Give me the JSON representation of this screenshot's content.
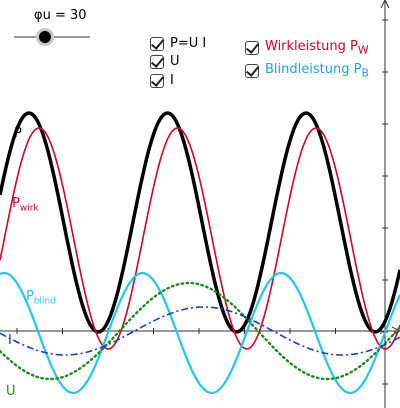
{
  "slider": {
    "label": "φu = 30",
    "value": 30
  },
  "checkboxes": [
    {
      "label": "P=U I",
      "checked": true,
      "color": "#000000"
    },
    {
      "label": "U",
      "checked": true,
      "color": "#000000"
    },
    {
      "label": "I",
      "checked": true,
      "color": "#000000"
    },
    {
      "label_main": "Wirkleistung P",
      "label_sub": "W",
      "checked": true,
      "color": "#d4002a"
    },
    {
      "label_main": "Blindleistung P",
      "label_sub": "B",
      "checked": true,
      "color": "#1ea0e6"
    }
  ],
  "curve_labels": {
    "p": {
      "text": "P",
      "color": "#000000"
    },
    "pwirk": {
      "main": "P",
      "sub": "wirk",
      "color": "#d4002a"
    },
    "pblind": {
      "main": "P",
      "sub": "blind",
      "color": "#1ec8f0"
    },
    "i": {
      "text": "I",
      "color": "#1e3cc8"
    },
    "u": {
      "text": "U",
      "color": "#1e8a1e"
    }
  },
  "colors": {
    "p": "#000000",
    "pwirk": "#d4002a",
    "pblind": "#1ec8f0",
    "i": "#1e3cc8",
    "u": "#1e8a1e",
    "axis": "#333333"
  }
}
